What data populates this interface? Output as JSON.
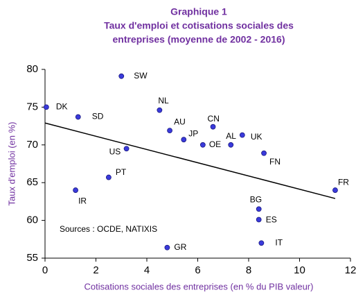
{
  "chart_data": {
    "type": "scatter",
    "title": [
      "Graphique 1",
      "Taux d'emploi et cotisations sociales des",
      "entreprises (moyenne de 2002 - 2016)"
    ],
    "x_label": "Cotisations sociales des entreprises (en % du PIB valeur)",
    "y_label": "Taux d'emploi (en %)",
    "annotation": "Sources : OCDE, NATIXIS",
    "labels": [
      "DK",
      "SD",
      "SW",
      "NL",
      "AU",
      "JP",
      "CN",
      "OE",
      "AL",
      "UK",
      "FN",
      "US",
      "PT",
      "IR",
      "FR",
      "BG",
      "ES",
      "IT",
      "GR"
    ],
    "x": [
      0.05,
      1.3,
      3.0,
      4.5,
      4.9,
      5.45,
      6.6,
      6.2,
      7.3,
      7.75,
      8.6,
      3.2,
      2.5,
      1.2,
      11.4,
      8.4,
      8.4,
      8.5,
      4.8
    ],
    "y": [
      75.0,
      73.7,
      79.1,
      74.6,
      71.9,
      70.7,
      72.4,
      70.0,
      70.0,
      71.3,
      68.9,
      69.5,
      65.7,
      64.0,
      64.0,
      61.5,
      60.1,
      57.0,
      56.4
    ],
    "color": "#3a3adb",
    "trend": {
      "x": [
        0,
        11.4
      ],
      "y": [
        72.9,
        62.9
      ],
      "color": "#000000"
    },
    "xlim": [
      0,
      12
    ],
    "xticks": [
      0,
      2,
      4,
      6,
      8,
      10,
      12
    ],
    "ylim": [
      55,
      80
    ],
    "yticks": [
      55,
      60,
      65,
      70,
      75,
      80
    ],
    "grid": false
  }
}
